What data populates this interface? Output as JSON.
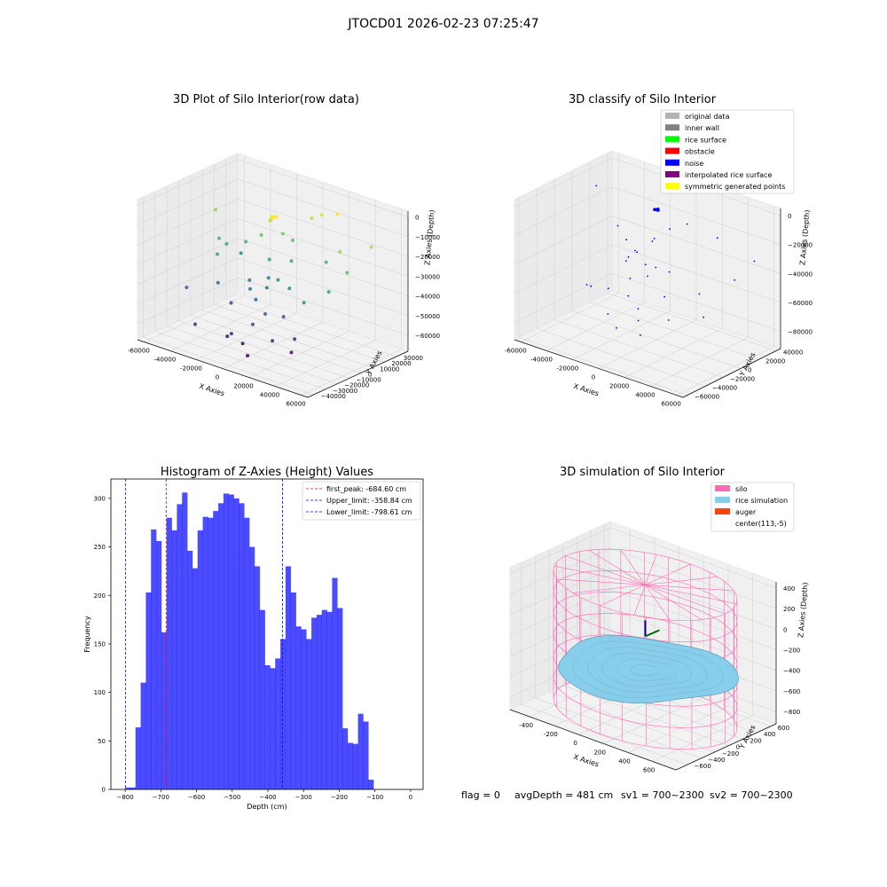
{
  "figure": {
    "suptitle": "JTOCD01 2026-02-23 07:25:47",
    "footer": [
      "flag = 0",
      "avgDepth = 481 cm",
      "sv1 = 700~2300",
      "sv2 = 700~2300"
    ]
  },
  "chart_data": [
    {
      "type": "scatter3d",
      "title": "3D Plot of Silo Interior(row data)",
      "xlabel": "X Axies",
      "ylabel": "Y Axies",
      "zlabel": "Z Axies (Depth)",
      "xlim": [
        -65000,
        65000
      ],
      "ylim": [
        -45000,
        40000
      ],
      "zlim": [
        -68000,
        3000
      ],
      "xticks": [
        -60000,
        -40000,
        -20000,
        0,
        20000,
        40000,
        60000
      ],
      "yticks": [
        -40000,
        -30000,
        -20000,
        -10000,
        0,
        10000,
        20000,
        30000
      ],
      "zticks": [
        -60000,
        -50000,
        -40000,
        -30000,
        -20000,
        -10000,
        0
      ],
      "colormap": "viridis",
      "points": [
        [
          -5000,
          2000,
          -5000
        ],
        [
          -3000,
          2500,
          -5000
        ],
        [
          -4000,
          1500,
          -5500
        ],
        [
          -2000,
          3000,
          -4800
        ],
        [
          -55000,
          10000,
          -15000
        ],
        [
          -45000,
          2000,
          -25000
        ],
        [
          -40000,
          -5000,
          -30000
        ],
        [
          -42000,
          5000,
          -28000
        ],
        [
          -30000,
          8000,
          -25000
        ],
        [
          -20000,
          10000,
          -20000
        ],
        [
          -15000,
          12000,
          -12000
        ],
        [
          -8000,
          15000,
          -18000
        ],
        [
          -5000,
          20000,
          -22000
        ],
        [
          5000,
          25000,
          -10000
        ],
        [
          10000,
          28000,
          -8000
        ],
        [
          20000,
          30000,
          -6000
        ],
        [
          15000,
          -5000,
          -35000
        ],
        [
          25000,
          15000,
          -25000
        ],
        [
          40000,
          10000,
          -15000
        ],
        [
          50000,
          5000,
          -22000
        ],
        [
          45000,
          -5000,
          -30000
        ],
        [
          35000,
          -15000,
          -35000
        ],
        [
          -50000,
          -20000,
          -45000
        ],
        [
          -35000,
          -10000,
          -42000
        ],
        [
          -20000,
          0,
          -40000
        ],
        [
          -10000,
          5000,
          -38000
        ],
        [
          -5000,
          -2000,
          -40000
        ],
        [
          0,
          2000,
          -36000
        ],
        [
          -15000,
          -5000,
          -42000
        ],
        [
          -8000,
          -8000,
          -45000
        ],
        [
          10000,
          -20000,
          -45000
        ],
        [
          5000,
          -25000,
          -50000
        ],
        [
          -30000,
          -35000,
          -55000
        ],
        [
          -10000,
          -30000,
          -58000
        ],
        [
          0,
          -28000,
          -60000
        ],
        [
          10000,
          -35000,
          -62000
        ],
        [
          -5000,
          -32000,
          -55000
        ],
        [
          20000,
          -25000,
          -55000
        ],
        [
          30000,
          -20000,
          -60000
        ],
        [
          28000,
          -15000,
          -55000
        ],
        [
          -25000,
          -10000,
          -50000
        ],
        [
          15000,
          -10000,
          -48000
        ],
        [
          -40000,
          15000,
          -35000
        ],
        [
          55000,
          20000,
          -12000
        ],
        [
          -12000,
          8000,
          -30000
        ],
        [
          3000,
          10000,
          -28000
        ]
      ]
    },
    {
      "type": "scatter3d",
      "title": "3D classify of Silo Interior",
      "xlabel": "X Axies",
      "ylabel": "Y Axies",
      "zlabel": "Z Axies (Depth)",
      "xlim": [
        -65000,
        65000
      ],
      "ylim": [
        -65000,
        45000
      ],
      "zlim": [
        -92000,
        5000
      ],
      "xticks": [
        -60000,
        -40000,
        -20000,
        0,
        20000,
        40000,
        60000
      ],
      "yticks": [
        -60000,
        -40000,
        -20000,
        0,
        20000,
        40000
      ],
      "zticks": [
        -80000,
        -60000,
        -40000,
        -20000,
        0
      ],
      "legend": [
        {
          "name": "original data",
          "color": "#b3b3b3"
        },
        {
          "name": "inner wall",
          "color": "#808080"
        },
        {
          "name": "rice surface",
          "color": "#00ff00"
        },
        {
          "name": "obstacle",
          "color": "#ff0000"
        },
        {
          "name": "noise",
          "color": "#0000ff"
        },
        {
          "name": "interpolated rice surface",
          "color": "#800080"
        },
        {
          "name": "symmetric generated points",
          "color": "#ffff00"
        }
      ],
      "legend_loc": "upper right",
      "points": [
        [
          0,
          0,
          -2000
        ],
        [
          1000,
          500,
          -2200
        ],
        [
          -1000,
          -500,
          -2000
        ],
        [
          500,
          1000,
          -1800
        ],
        [
          -60000,
          20000,
          -10000
        ],
        [
          -40000,
          15000,
          -30000
        ],
        [
          -30000,
          10000,
          -35000
        ],
        [
          -20000,
          5000,
          -38000
        ],
        [
          -10000,
          10000,
          -30000
        ],
        [
          0,
          15000,
          -20000
        ],
        [
          10000,
          20000,
          -15000
        ],
        [
          30000,
          25000,
          -20000
        ],
        [
          50000,
          15000,
          -40000
        ],
        [
          55000,
          30000,
          -30000
        ],
        [
          40000,
          -10000,
          -45000
        ],
        [
          20000,
          -20000,
          -50000
        ],
        [
          0,
          -10000,
          -45000
        ],
        [
          -10000,
          -15000,
          -48000
        ],
        [
          -20000,
          -5000,
          -42000
        ],
        [
          -5000,
          -5000,
          -40000
        ],
        [
          5000,
          -8000,
          -38000
        ],
        [
          -15000,
          0,
          -36000
        ],
        [
          -25000,
          5000,
          -44000
        ],
        [
          10000,
          0,
          -42000
        ],
        [
          -30000,
          -30000,
          -55000
        ],
        [
          -10000,
          -40000,
          -65000
        ],
        [
          0,
          -45000,
          -70000
        ],
        [
          10000,
          -35000,
          -65000
        ],
        [
          30000,
          -30000,
          -60000
        ],
        [
          -20000,
          -25000,
          -55000
        ],
        [
          -40000,
          -20000,
          -60000
        ],
        [
          50000,
          -20000,
          -55000
        ],
        [
          -8000,
          -20000,
          -58000
        ],
        [
          3000,
          -25000,
          -62000
        ],
        [
          15000,
          -40000,
          -72000
        ],
        [
          -5000,
          5000,
          -25000
        ]
      ]
    },
    {
      "type": "bar",
      "title": "Histogram of Z-Axies (Height) Values",
      "xlabel": "Depth (cm)",
      "ylabel": "Frequency",
      "xlim": [
        -840,
        35
      ],
      "ylim": [
        0,
        320
      ],
      "xticks": [
        -800,
        -700,
        -600,
        -500,
        -400,
        -300,
        -200,
        -100,
        0
      ],
      "yticks": [
        0,
        50,
        100,
        150,
        200,
        250,
        300
      ],
      "bin_start": -800,
      "bin_width": 14.5,
      "values": [
        2,
        2,
        64,
        110,
        203,
        268,
        256,
        162,
        280,
        267,
        294,
        306,
        246,
        228,
        267,
        281,
        280,
        287,
        295,
        305,
        304,
        300,
        295,
        280,
        250,
        230,
        185,
        128,
        125,
        135,
        155,
        230,
        203,
        168,
        165,
        155,
        177,
        180,
        185,
        183,
        218,
        187,
        63,
        48,
        47,
        78,
        70,
        10
      ],
      "legend": [
        {
          "name": "first_peak: -684.60 cm",
          "value": -684.6,
          "color": "#ff0000"
        },
        {
          "name": "Upper_limit: -358.84 cm",
          "value": -358.84,
          "color": "#0000ff"
        },
        {
          "name": "Lower_limit: -798.61 cm",
          "value": -798.61,
          "color": "#0000ff"
        }
      ],
      "legend_loc": "upper right"
    },
    {
      "type": "surface3d",
      "title": "3D simulation of Silo Interior",
      "xlabel": "X Axies",
      "ylabel": "Y Axies",
      "zlabel": "Z Axies (Depth)",
      "xlim": [
        -560,
        790
      ],
      "ylim": [
        -760,
        680
      ],
      "zlim": [
        -920,
        460
      ],
      "xticks": [
        -400,
        -200,
        0,
        200,
        400,
        600
      ],
      "yticks": [
        -600,
        -400,
        -200,
        0,
        200,
        400,
        600
      ],
      "zticks": [
        -800,
        -600,
        -400,
        -200,
        0,
        200,
        400
      ],
      "legend": [
        {
          "name": "silo",
          "color": "#ff69b4"
        },
        {
          "name": "rice simulation",
          "color": "#87ceeb"
        },
        {
          "name": "auger",
          "color": "#ff4500"
        },
        {
          "name": "center(113,-5)",
          "color": ""
        }
      ],
      "legend_loc": "upper right",
      "silo": {
        "cx": 113,
        "cy": -5,
        "r": 650,
        "z_top": 350,
        "z_bottom": -900
      },
      "rice_mean_depth": -481
    }
  ]
}
